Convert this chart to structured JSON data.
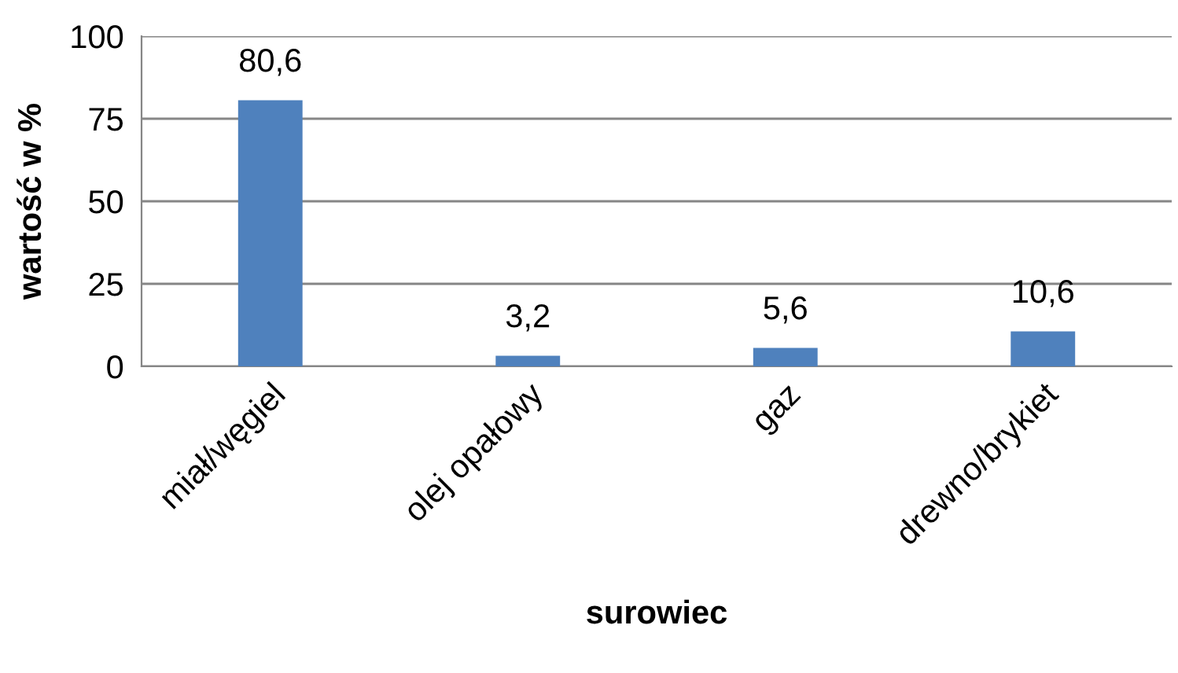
{
  "chart_data": {
    "type": "bar",
    "xlabel": "surowiec",
    "ylabel": "wartość w %",
    "categories": [
      "miał/węgiel",
      "olej opałowy",
      "gaz",
      "drewno/brykiet"
    ],
    "values": [
      80.6,
      3.2,
      5.6,
      10.6
    ],
    "color": "#4f81bd",
    "value_labels": [
      "80,6",
      "3,2",
      "5,6",
      "10,6"
    ],
    "ylim": [
      0,
      100
    ],
    "yticks": [
      0,
      25,
      50,
      75,
      100
    ],
    "grid": "y",
    "legend": false
  }
}
